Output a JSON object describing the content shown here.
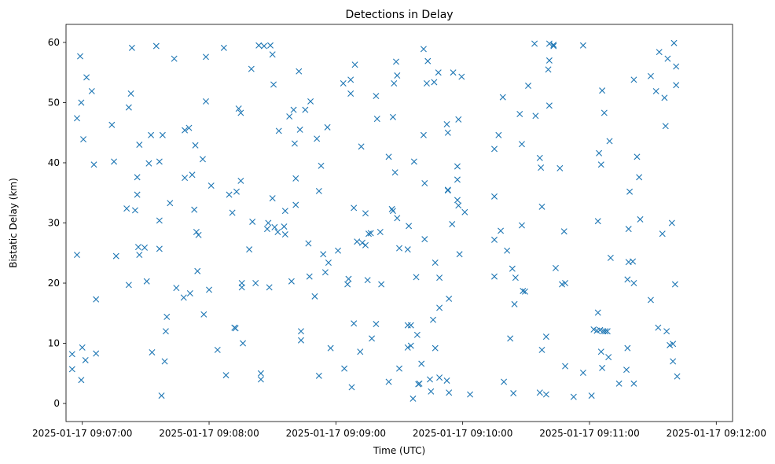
{
  "chart_data": {
    "type": "scatter",
    "title": "Detections in Delay",
    "xlabel": "Time (UTC)",
    "ylabel": "Bistatic Delay (km)",
    "marker": "x",
    "color": "#1f77b4",
    "grid": false,
    "x_unit": "seconds since 2025-01-17 09:07:00",
    "xlim": [
      -7.7,
      307.7
    ],
    "ylim": [
      -3.0,
      63.0
    ],
    "x_ticks": [
      {
        "value": 0,
        "label": "2025-01-17 09:07:00"
      },
      {
        "value": 60,
        "label": "2025-01-17 09:08:00"
      },
      {
        "value": 120,
        "label": "2025-01-17 09:09:00"
      },
      {
        "value": 180,
        "label": "2025-01-17 09:10:00"
      },
      {
        "value": 240,
        "label": "2025-01-17 09:11:00"
      },
      {
        "value": 300,
        "label": "2025-01-17 09:12:00"
      }
    ],
    "y_ticks": [
      {
        "value": 0,
        "label": "0"
      },
      {
        "value": 10,
        "label": "10"
      },
      {
        "value": 20,
        "label": "20"
      },
      {
        "value": 30,
        "label": "30"
      },
      {
        "value": 40,
        "label": "40"
      },
      {
        "value": 50,
        "label": "50"
      },
      {
        "value": 60,
        "label": "60"
      }
    ],
    "points": [
      [
        -4.8,
        8.2
      ],
      [
        -4.8,
        5.7
      ],
      [
        -2.5,
        47.4
      ],
      [
        -2.5,
        24.7
      ],
      [
        -1.0,
        57.7
      ],
      [
        -0.5,
        50.0
      ],
      [
        -0.5,
        3.9
      ],
      [
        0.0,
        9.3
      ],
      [
        0.5,
        43.9
      ],
      [
        1.5,
        7.2
      ],
      [
        2.0,
        54.2
      ],
      [
        4.5,
        51.9
      ],
      [
        5.5,
        39.7
      ],
      [
        6.5,
        17.3
      ],
      [
        6.5,
        8.3
      ],
      [
        14.0,
        46.3
      ],
      [
        15.0,
        40.2
      ],
      [
        16.0,
        24.5
      ],
      [
        21.0,
        32.4
      ],
      [
        22.0,
        49.2
      ],
      [
        22.0,
        19.7
      ],
      [
        23.0,
        51.5
      ],
      [
        23.5,
        59.1
      ],
      [
        25.0,
        32.1
      ],
      [
        26.0,
        34.7
      ],
      [
        26.0,
        37.6
      ],
      [
        26.5,
        26.0
      ],
      [
        27.0,
        43.0
      ],
      [
        27.0,
        24.7
      ],
      [
        29.5,
        25.9
      ],
      [
        30.5,
        20.3
      ],
      [
        31.5,
        39.9
      ],
      [
        32.5,
        44.6
      ],
      [
        33.0,
        8.5
      ],
      [
        35.0,
        59.4
      ],
      [
        36.5,
        30.4
      ],
      [
        36.5,
        40.2
      ],
      [
        36.5,
        25.7
      ],
      [
        37.5,
        1.3
      ],
      [
        38.0,
        44.6
      ],
      [
        39.0,
        7.0
      ],
      [
        39.5,
        12.0
      ],
      [
        40.0,
        14.4
      ],
      [
        41.5,
        33.3
      ],
      [
        43.5,
        57.3
      ],
      [
        44.5,
        19.2
      ],
      [
        48.0,
        17.6
      ],
      [
        48.5,
        45.4
      ],
      [
        48.5,
        37.5
      ],
      [
        50.5,
        45.8
      ],
      [
        51.0,
        18.3
      ],
      [
        52.0,
        38.0
      ],
      [
        53.0,
        32.2
      ],
      [
        53.5,
        42.9
      ],
      [
        54.0,
        28.5
      ],
      [
        54.5,
        22.0
      ],
      [
        55.0,
        28.0
      ],
      [
        57.0,
        40.6
      ],
      [
        57.5,
        14.8
      ],
      [
        58.5,
        57.6
      ],
      [
        58.5,
        50.2
      ],
      [
        60.0,
        18.9
      ],
      [
        61.0,
        36.2
      ],
      [
        64.0,
        8.9
      ],
      [
        67.0,
        59.1
      ],
      [
        68.0,
        4.7
      ],
      [
        69.5,
        34.7
      ],
      [
        71.0,
        31.7
      ],
      [
        72.0,
        12.6
      ],
      [
        72.5,
        12.5
      ],
      [
        73.0,
        35.2
      ],
      [
        74.0,
        49.0
      ],
      [
        75.0,
        48.3
      ],
      [
        75.0,
        37.0
      ],
      [
        75.5,
        20.0
      ],
      [
        75.5,
        19.3
      ],
      [
        76.0,
        10.0
      ],
      [
        79.0,
        25.6
      ],
      [
        80.0,
        55.6
      ],
      [
        80.5,
        30.2
      ],
      [
        82.0,
        20.0
      ],
      [
        83.5,
        59.5
      ],
      [
        84.5,
        5.0
      ],
      [
        84.5,
        4.0
      ],
      [
        86.0,
        59.4
      ],
      [
        87.5,
        29.0
      ],
      [
        88.0,
        30.0
      ],
      [
        88.5,
        19.3
      ],
      [
        89.0,
        59.5
      ],
      [
        90.0,
        34.1
      ],
      [
        90.0,
        58.0
      ],
      [
        90.5,
        53.0
      ],
      [
        91.0,
        29.3
      ],
      [
        92.5,
        28.5
      ],
      [
        93.0,
        45.3
      ],
      [
        95.5,
        29.4
      ],
      [
        96.0,
        32.0
      ],
      [
        96.0,
        28.1
      ],
      [
        98.0,
        47.7
      ],
      [
        99.0,
        20.3
      ],
      [
        100.0,
        48.8
      ],
      [
        100.5,
        43.2
      ],
      [
        101.0,
        33.0
      ],
      [
        101.0,
        37.4
      ],
      [
        102.5,
        55.2
      ],
      [
        103.0,
        45.5
      ],
      [
        103.5,
        12.0
      ],
      [
        103.5,
        10.5
      ],
      [
        105.5,
        48.8
      ],
      [
        107.0,
        26.6
      ],
      [
        107.5,
        21.1
      ],
      [
        108.0,
        50.2
      ],
      [
        110.0,
        17.8
      ],
      [
        111.0,
        44.0
      ],
      [
        112.0,
        4.6
      ],
      [
        112.0,
        35.3
      ],
      [
        113.0,
        39.5
      ],
      [
        114.0,
        24.8
      ],
      [
        115.0,
        21.8
      ],
      [
        116.0,
        45.9
      ],
      [
        116.5,
        23.4
      ],
      [
        117.5,
        9.2
      ],
      [
        121.0,
        25.4
      ],
      [
        123.5,
        53.2
      ],
      [
        124.0,
        5.8
      ],
      [
        125.5,
        19.8
      ],
      [
        126.0,
        20.7
      ],
      [
        127.0,
        51.5
      ],
      [
        127.0,
        53.8
      ],
      [
        127.5,
        2.7
      ],
      [
        128.5,
        32.5
      ],
      [
        128.5,
        13.3
      ],
      [
        129.0,
        56.3
      ],
      [
        130.0,
        26.9
      ],
      [
        131.5,
        8.6
      ],
      [
        132.0,
        42.7
      ],
      [
        132.5,
        26.7
      ],
      [
        134.0,
        26.3
      ],
      [
        134.0,
        31.6
      ],
      [
        135.0,
        20.5
      ],
      [
        135.5,
        28.2
      ],
      [
        136.5,
        28.3
      ],
      [
        137.0,
        10.8
      ],
      [
        139.0,
        13.2
      ],
      [
        139.0,
        51.1
      ],
      [
        139.5,
        47.3
      ],
      [
        141.0,
        28.5
      ],
      [
        141.5,
        19.8
      ],
      [
        145.0,
        3.6
      ],
      [
        145.0,
        41.0
      ],
      [
        146.5,
        32.3
      ],
      [
        147.0,
        32.0
      ],
      [
        147.0,
        47.6
      ],
      [
        147.5,
        53.2
      ],
      [
        148.0,
        38.4
      ],
      [
        148.5,
        56.8
      ],
      [
        149.0,
        30.8
      ],
      [
        149.0,
        54.5
      ],
      [
        150.0,
        25.8
      ],
      [
        150.0,
        5.8
      ],
      [
        154.0,
        13.0
      ],
      [
        154.0,
        9.3
      ],
      [
        154.0,
        25.6
      ],
      [
        154.5,
        29.5
      ],
      [
        155.5,
        13.0
      ],
      [
        155.5,
        9.6
      ],
      [
        156.5,
        0.8
      ],
      [
        157.0,
        40.2
      ],
      [
        158.0,
        21.0
      ],
      [
        158.5,
        11.4
      ],
      [
        159.0,
        3.2
      ],
      [
        159.5,
        3.3
      ],
      [
        160.5,
        6.6
      ],
      [
        161.5,
        58.9
      ],
      [
        161.5,
        44.6
      ],
      [
        162.0,
        36.6
      ],
      [
        162.0,
        27.3
      ],
      [
        163.0,
        53.2
      ],
      [
        163.5,
        56.9
      ],
      [
        164.5,
        4.0
      ],
      [
        165.0,
        2.0
      ],
      [
        166.0,
        13.9
      ],
      [
        166.5,
        53.4
      ],
      [
        167.0,
        23.4
      ],
      [
        167.0,
        9.2
      ],
      [
        168.5,
        55.0
      ],
      [
        169.0,
        20.9
      ],
      [
        169.0,
        15.9
      ],
      [
        169.0,
        4.3
      ],
      [
        172.5,
        3.8
      ],
      [
        172.5,
        46.4
      ],
      [
        173.0,
        45.0
      ],
      [
        173.0,
        35.4
      ],
      [
        173.0,
        35.5
      ],
      [
        173.5,
        1.8
      ],
      [
        173.5,
        17.4
      ],
      [
        175.0,
        29.8
      ],
      [
        175.5,
        55.0
      ],
      [
        177.5,
        39.4
      ],
      [
        177.5,
        37.2
      ],
      [
        177.5,
        33.8
      ],
      [
        178.0,
        32.9
      ],
      [
        178.0,
        47.2
      ],
      [
        178.5,
        24.8
      ],
      [
        179.5,
        54.3
      ],
      [
        181.0,
        31.8
      ],
      [
        183.5,
        1.5
      ],
      [
        195.0,
        42.3
      ],
      [
        195.0,
        34.4
      ],
      [
        195.0,
        27.2
      ],
      [
        195.0,
        21.1
      ],
      [
        197.0,
        44.6
      ],
      [
        198.0,
        28.7
      ],
      [
        199.0,
        50.9
      ],
      [
        199.5,
        3.6
      ],
      [
        201.0,
        25.4
      ],
      [
        202.5,
        10.8
      ],
      [
        203.5,
        22.4
      ],
      [
        204.0,
        1.7
      ],
      [
        204.5,
        16.5
      ],
      [
        205.0,
        20.9
      ],
      [
        207.0,
        48.1
      ],
      [
        208.0,
        43.1
      ],
      [
        208.0,
        29.6
      ],
      [
        208.5,
        18.7
      ],
      [
        209.5,
        18.6
      ],
      [
        211.0,
        52.8
      ],
      [
        214.0,
        59.8
      ],
      [
        214.5,
        47.8
      ],
      [
        216.5,
        40.8
      ],
      [
        216.5,
        1.8
      ],
      [
        217.0,
        39.2
      ],
      [
        217.5,
        32.7
      ],
      [
        217.5,
        8.9
      ],
      [
        219.5,
        11.1
      ],
      [
        219.5,
        1.5
      ],
      [
        220.5,
        55.5
      ],
      [
        221.0,
        57.0
      ],
      [
        221.0,
        49.5
      ],
      [
        221.0,
        59.8
      ],
      [
        223.0,
        59.6
      ],
      [
        223.0,
        59.4
      ],
      [
        224.0,
        22.5
      ],
      [
        226.0,
        39.1
      ],
      [
        227.0,
        19.8
      ],
      [
        228.0,
        28.6
      ],
      [
        228.5,
        20.0
      ],
      [
        228.5,
        6.2
      ],
      [
        232.5,
        1.1
      ],
      [
        237.0,
        59.5
      ],
      [
        237.0,
        5.1
      ],
      [
        241.0,
        1.3
      ],
      [
        242.0,
        12.3
      ],
      [
        243.5,
        12.1
      ],
      [
        244.0,
        15.1
      ],
      [
        244.0,
        30.3
      ],
      [
        244.5,
        41.6
      ],
      [
        245.0,
        12.2
      ],
      [
        245.5,
        8.6
      ],
      [
        245.5,
        39.7
      ],
      [
        246.0,
        52.0
      ],
      [
        246.0,
        5.9
      ],
      [
        246.5,
        12.0
      ],
      [
        247.0,
        48.3
      ],
      [
        247.5,
        12.0
      ],
      [
        248.5,
        12.0
      ],
      [
        249.0,
        7.7
      ],
      [
        249.5,
        43.6
      ],
      [
        250.0,
        24.2
      ],
      [
        254.0,
        3.3
      ],
      [
        257.5,
        5.6
      ],
      [
        258.0,
        20.6
      ],
      [
        258.0,
        9.2
      ],
      [
        258.5,
        23.5
      ],
      [
        258.5,
        29.0
      ],
      [
        259.0,
        35.2
      ],
      [
        260.5,
        23.6
      ],
      [
        261.0,
        3.3
      ],
      [
        261.0,
        20.0
      ],
      [
        261.0,
        53.8
      ],
      [
        262.5,
        41.0
      ],
      [
        263.5,
        37.6
      ],
      [
        264.0,
        30.6
      ],
      [
        269.0,
        17.2
      ],
      [
        269.0,
        54.4
      ],
      [
        271.5,
        51.9
      ],
      [
        272.5,
        12.6
      ],
      [
        273.0,
        58.4
      ],
      [
        274.5,
        28.2
      ],
      [
        275.5,
        50.8
      ],
      [
        276.0,
        46.1
      ],
      [
        276.5,
        12.0
      ],
      [
        277.0,
        57.3
      ],
      [
        278.0,
        9.7
      ],
      [
        279.0,
        30.0
      ],
      [
        279.5,
        9.9
      ],
      [
        279.5,
        7.0
      ],
      [
        280.0,
        59.9
      ],
      [
        280.5,
        19.8
      ],
      [
        281.0,
        56.0
      ],
      [
        281.0,
        52.9
      ],
      [
        281.5,
        4.5
      ]
    ]
  }
}
